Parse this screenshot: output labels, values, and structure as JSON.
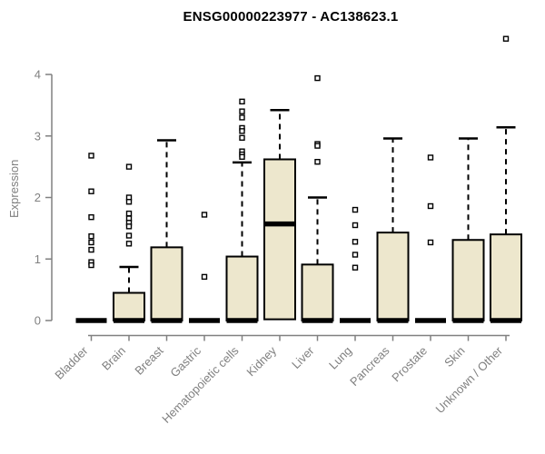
{
  "colors": {
    "background": "#ffffff",
    "title": "#000000",
    "axis": "#808080",
    "box_fill": "#ede7cd",
    "box_border": "#000000",
    "median": "#000000",
    "whisker": "#000000",
    "outlier_fill": "#ffffff",
    "outlier_border": "#000000"
  },
  "chart_data": {
    "type": "boxplot",
    "title": "ENSG00000223977 - AC138623.1",
    "xlabel": "",
    "ylabel": "Expression",
    "ylim": [
      0,
      4
    ],
    "yticks": [
      0,
      1,
      2,
      3,
      4
    ],
    "grid": false,
    "legend": false,
    "categories": [
      "Bladder",
      "Brain",
      "Breast",
      "Gastric",
      "Hematopoietic cells",
      "Kidney",
      "Liver",
      "Lung",
      "Pancreas",
      "Prostate",
      "Skin",
      "Unknown / Other"
    ],
    "groups": [
      {
        "category": "Bladder",
        "q1": 0,
        "median": 0,
        "q3": 0,
        "whisker_low": 0,
        "whisker_high": 0,
        "outliers": [
          2.68,
          2.1,
          1.68,
          1.37,
          1.27,
          1.15,
          0.95,
          0.9
        ]
      },
      {
        "category": "Brain",
        "q1": 0,
        "median": 0,
        "q3": 0.45,
        "whisker_low": 0,
        "whisker_high": 0.87,
        "outliers": [
          2.5,
          2.0,
          1.93,
          1.74,
          1.66,
          1.59,
          1.53,
          1.38,
          1.25
        ]
      },
      {
        "category": "Breast",
        "q1": 0,
        "median": 0,
        "q3": 1.19,
        "whisker_low": 0,
        "whisker_high": 2.93,
        "outliers": []
      },
      {
        "category": "Gastric",
        "q1": 0,
        "median": 0,
        "q3": 0,
        "whisker_low": 0,
        "whisker_high": 0,
        "outliers": [
          1.72,
          0.71
        ]
      },
      {
        "category": "Hematopoietic cells",
        "q1": 0,
        "median": 0,
        "q3": 1.04,
        "whisker_low": 0,
        "whisker_high": 2.57,
        "outliers": [
          3.56,
          3.4,
          3.3,
          3.13,
          3.08,
          2.97,
          2.75,
          2.7,
          2.66
        ]
      },
      {
        "category": "Kidney",
        "q1": 0.02,
        "median": 1.57,
        "q3": 2.62,
        "whisker_low": 0.02,
        "whisker_high": 3.42,
        "outliers": []
      },
      {
        "category": "Liver",
        "q1": 0,
        "median": 0,
        "q3": 0.91,
        "whisker_low": 0,
        "whisker_high": 2.0,
        "outliers": [
          3.94,
          2.87,
          2.84,
          2.58
        ]
      },
      {
        "category": "Lung",
        "q1": 0,
        "median": 0,
        "q3": 0,
        "whisker_low": 0,
        "whisker_high": 0,
        "outliers": [
          1.8,
          1.55,
          1.28,
          1.07,
          0.86
        ]
      },
      {
        "category": "Pancreas",
        "q1": 0,
        "median": 0,
        "q3": 1.43,
        "whisker_low": 0,
        "whisker_high": 2.96,
        "outliers": []
      },
      {
        "category": "Prostate",
        "q1": 0,
        "median": 0,
        "q3": 0,
        "whisker_low": 0,
        "whisker_high": 0,
        "outliers": [
          2.65,
          1.86,
          1.27
        ]
      },
      {
        "category": "Skin",
        "q1": 0,
        "median": 0,
        "q3": 1.31,
        "whisker_low": 0,
        "whisker_high": 2.96,
        "outliers": []
      },
      {
        "category": "Unknown / Other",
        "q1": 0,
        "median": 0,
        "q3": 1.4,
        "whisker_low": 0,
        "whisker_high": 3.14,
        "outliers": [
          4.58
        ]
      }
    ]
  }
}
